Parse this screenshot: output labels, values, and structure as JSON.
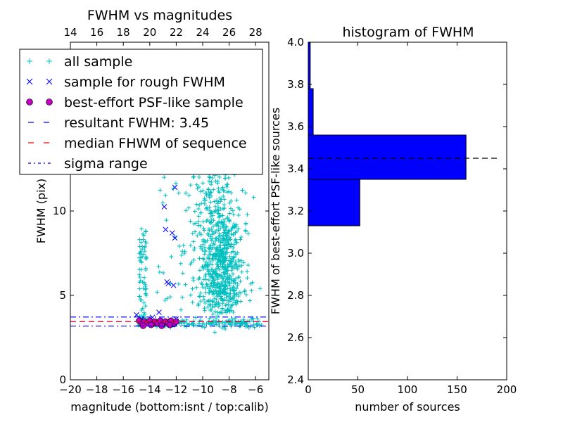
{
  "chart_data": [
    {
      "type": "scatter",
      "title": "FWHM vs magnitudes",
      "xlabel": "magnitude (bottom:isnt / top:calib)",
      "ylabel": "FWHM (pix)",
      "xlim": [
        -20,
        -5
      ],
      "ylim": [
        0,
        20
      ],
      "x_ticks": [
        -20,
        -18,
        -16,
        -14,
        -12,
        -10,
        -8,
        -6
      ],
      "x_tick_labels": [
        "−20",
        "−18",
        "−16",
        "−14",
        "−12",
        "−10",
        "−8",
        "−6"
      ],
      "y_ticks": [
        0,
        5,
        10
      ],
      "y_tick_labels": [
        "0",
        "5",
        "10"
      ],
      "top_axis": {
        "label": "calib",
        "offset": 34,
        "ticks": [
          14,
          16,
          18,
          20,
          22,
          24,
          26,
          28
        ],
        "tick_labels": [
          "14",
          "16",
          "18",
          "20",
          "22",
          "24",
          "26",
          "28"
        ]
      },
      "grid": false,
      "legend": {
        "placement": "upper-left",
        "entries": [
          {
            "label": "all sample",
            "marker": "plus",
            "color": "#00bfbf"
          },
          {
            "label": "sample for rough FWHM",
            "marker": "x",
            "color": "#0000ff"
          },
          {
            "label": "best-effort PSF-like sample",
            "marker": "circle",
            "color": "#bf00bf"
          },
          {
            "label": "resultant FWHM: 3.45",
            "marker": "dash",
            "color": "#0000ff"
          },
          {
            "label": "median FHWM of sequence",
            "marker": "dash",
            "color": "#ff0000"
          },
          {
            "label": "sigma range",
            "marker": "dashdot",
            "color": "#0000ff"
          }
        ]
      },
      "hlines": [
        {
          "y": 3.45,
          "color": "#0000ff",
          "style": "dashed"
        },
        {
          "y": 3.45,
          "color": "#ff0000",
          "style": "dashed"
        },
        {
          "y": 3.72,
          "color": "#0000ff",
          "style": "dashdot"
        },
        {
          "y": 3.18,
          "color": "#0000ff",
          "style": "dashdot"
        }
      ],
      "series": [
        {
          "name": "sample for rough FWHM",
          "marker": "x",
          "color": "#0000ff",
          "points": [
            [
              -15.0,
              3.85
            ],
            [
              -14.6,
              3.6
            ],
            [
              -14.3,
              3.4
            ],
            [
              -13.8,
              3.7
            ],
            [
              -13.3,
              4.0
            ],
            [
              -13.0,
              3.5
            ],
            [
              -12.7,
              3.5
            ],
            [
              -12.4,
              3.3
            ],
            [
              -12.0,
              3.6
            ],
            [
              -12.9,
              10.25
            ],
            [
              -12.1,
              11.4
            ],
            [
              -12.8,
              8.9
            ],
            [
              -12.3,
              8.7
            ],
            [
              -12.1,
              8.4
            ],
            [
              -12.7,
              5.8
            ],
            [
              -12.6,
              5.7
            ],
            [
              -12.2,
              5.6
            ]
          ]
        },
        {
          "name": "best-effort PSF-like sample",
          "marker": "circle",
          "color": "#bf00bf",
          "points": [
            [
              -14.8,
              3.5
            ],
            [
              -14.6,
              3.3
            ],
            [
              -14.4,
              3.45
            ],
            [
              -14.2,
              3.35
            ],
            [
              -14.0,
              3.5
            ],
            [
              -13.8,
              3.3
            ],
            [
              -13.6,
              3.45
            ],
            [
              -13.4,
              3.35
            ],
            [
              -13.2,
              3.5
            ],
            [
              -13.0,
              3.3
            ],
            [
              -12.8,
              3.45
            ],
            [
              -12.6,
              3.35
            ],
            [
              -12.4,
              3.5
            ],
            [
              -12.2,
              3.3
            ],
            [
              -12.0,
              3.45
            ],
            [
              -14.5,
              3.2
            ],
            [
              -13.9,
              3.25
            ],
            [
              -13.1,
              3.2
            ],
            [
              -12.5,
              3.25
            ]
          ]
        }
      ]
    },
    {
      "type": "bar",
      "orientation": "horizontal",
      "title": "histogram of FWHM",
      "xlabel": "number of sources",
      "ylabel": "FWHM of best-effort PSF-like sources",
      "xlim": [
        0,
        200
      ],
      "ylim": [
        2.4,
        4.0
      ],
      "x_ticks": [
        0,
        50,
        100,
        150,
        200
      ],
      "x_tick_labels": [
        "0",
        "50",
        "100",
        "150",
        "200"
      ],
      "y_ticks": [
        2.4,
        2.6,
        2.8,
        3.0,
        3.2,
        3.4,
        3.6,
        3.8,
        4.0
      ],
      "y_tick_labels": [
        "2.4",
        "2.6",
        "2.8",
        "3.0",
        "3.2",
        "3.4",
        "3.6",
        "3.8",
        "4.0"
      ],
      "grid": false,
      "color": "#0000ff",
      "bins": [
        {
          "low": 3.13,
          "high": 3.35,
          "count": 52
        },
        {
          "low": 3.35,
          "high": 3.56,
          "count": 159
        },
        {
          "low": 3.56,
          "high": 3.78,
          "count": 5
        },
        {
          "low": 3.78,
          "high": 4.0,
          "count": 2
        }
      ],
      "hline": {
        "y": 3.45,
        "color": "#000000",
        "style": "dashed"
      }
    }
  ]
}
